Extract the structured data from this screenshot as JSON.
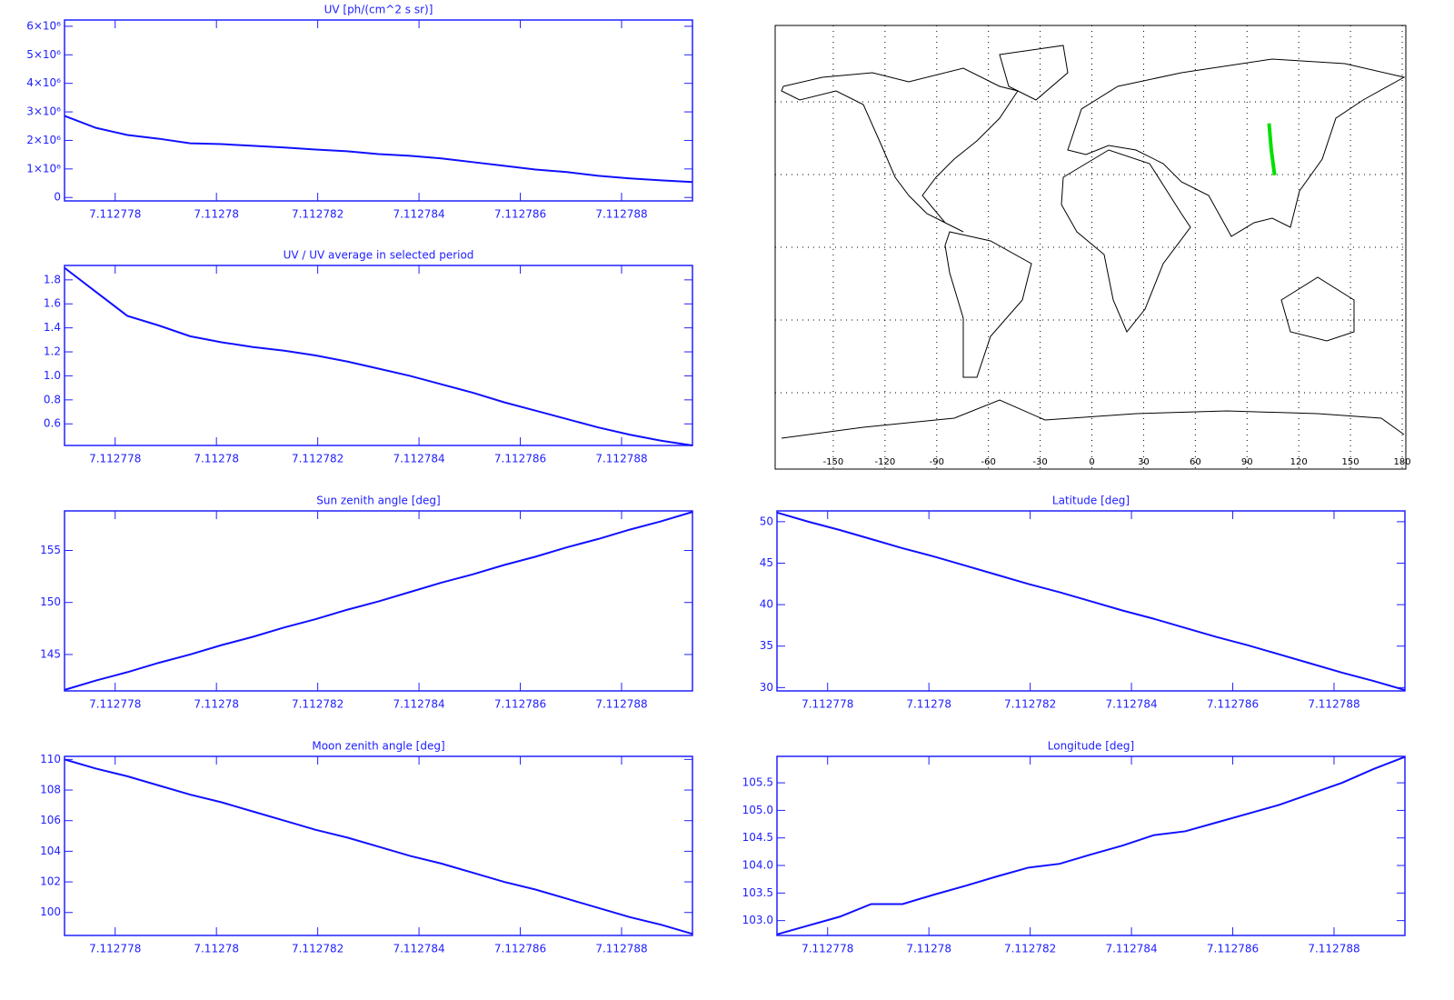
{
  "chart_data": [
    {
      "type": "line",
      "title": "UV [ph/(cm^2 s sr)]",
      "x": [
        7.112777,
        7.11277762,
        7.11277824,
        7.11277886,
        7.11277948,
        7.1127801,
        7.11278072,
        7.11278134,
        7.11278196,
        7.11278258,
        7.1127832,
        7.11278382,
        7.11278444,
        7.11278506,
        7.11278568,
        7.1127863,
        7.11278692,
        7.11278754,
        7.11278816,
        7.11278878,
        7.1127894
      ],
      "series": [
        {
          "color": "#1010ff",
          "values": [
            2860000,
            2440000,
            2190000,
            2060000,
            1900000,
            1870000,
            1810000,
            1750000,
            1680000,
            1620000,
            1520000,
            1460000,
            1370000,
            1240000,
            1110000,
            980000,
            890000,
            760000,
            670000,
            600000,
            540000
          ]
        }
      ],
      "xlim": [
        7.112777,
        7.1127894
      ],
      "xticks": [
        7.112778,
        7.11278,
        7.112782,
        7.112784,
        7.112786,
        7.112788
      ],
      "ylim": [
        -120000,
        6220000
      ],
      "yticks": [
        0,
        {
          "value": 1000000,
          "label": "1×10⁶"
        },
        {
          "value": 2000000,
          "label": "2×10⁶"
        },
        {
          "value": 3000000,
          "label": "3×10⁶"
        },
        {
          "value": 4000000,
          "label": "4×10⁶"
        },
        {
          "value": 5000000,
          "label": "5×10⁶"
        },
        {
          "value": 6000000,
          "label": "6×10⁶"
        }
      ]
    },
    {
      "type": "map",
      "xlim": [
        -183.7,
        182.1
      ],
      "ylim": [
        -91.5,
        91.5
      ],
      "xticks": [
        -150,
        -120,
        -90,
        -60,
        -30,
        0,
        30,
        60,
        90,
        120,
        150,
        180
      ],
      "yticks": [
        -60,
        -30,
        0,
        30,
        60
      ],
      "grid": true,
      "series": [
        {
          "color": "#00e000",
          "x": [
            102.75,
            104.03,
            105.97
          ],
          "values": [
            51.1,
            40.4,
            29.7
          ]
        }
      ]
    },
    {
      "type": "line",
      "title": "UV / UV average in selected period",
      "x": [
        7.112777,
        7.11277762,
        7.11277824,
        7.11277886,
        7.11277948,
        7.1127801,
        7.11278072,
        7.11278134,
        7.11278196,
        7.11278258,
        7.1127832,
        7.11278382,
        7.11278444,
        7.11278506,
        7.11278568,
        7.1127863,
        7.11278692,
        7.11278754,
        7.11278816,
        7.11278878,
        7.1127894
      ],
      "series": [
        {
          "color": "#1010ff",
          "values": [
            1.9,
            1.7,
            1.5,
            1.42,
            1.33,
            1.28,
            1.24,
            1.21,
            1.17,
            1.12,
            1.06,
            1.0,
            0.93,
            0.86,
            0.78,
            0.71,
            0.64,
            0.57,
            0.51,
            0.46,
            0.42
          ]
        }
      ],
      "xlim": [
        7.112777,
        7.1127894
      ],
      "xticks": [
        7.112778,
        7.11278,
        7.112782,
        7.112784,
        7.112786,
        7.112788
      ],
      "ylim": [
        0.42,
        1.92
      ],
      "yticks": [
        0.6,
        0.8,
        {
          "value": 1.0,
          "label": "1.0"
        },
        1.2,
        1.4,
        1.6,
        1.8
      ]
    },
    {
      "type": "line",
      "title": "Sun zenith angle [deg]",
      "x": [
        7.112777,
        7.11277762,
        7.11277824,
        7.11277886,
        7.11277948,
        7.1127801,
        7.11278072,
        7.11278134,
        7.11278196,
        7.11278258,
        7.1127832,
        7.11278382,
        7.11278444,
        7.11278506,
        7.11278568,
        7.1127863,
        7.11278692,
        7.11278754,
        7.11278816,
        7.11278878,
        7.1127894
      ],
      "series": [
        {
          "color": "#1010ff",
          "values": [
            141.6,
            142.5,
            143.3,
            144.2,
            145.0,
            145.9,
            146.7,
            147.6,
            148.4,
            149.3,
            150.1,
            151.0,
            151.9,
            152.7,
            153.6,
            154.4,
            155.3,
            156.1,
            157.0,
            157.8,
            158.7
          ]
        }
      ],
      "xlim": [
        7.112777,
        7.1127894
      ],
      "xticks": [
        7.112778,
        7.11278,
        7.112782,
        7.112784,
        7.112786,
        7.112788
      ],
      "ylim": [
        141.5,
        158.8
      ],
      "yticks": [
        145,
        150,
        155
      ]
    },
    {
      "type": "line",
      "title": "Latitude [deg]",
      "x": [
        7.112777,
        7.11277762,
        7.11277824,
        7.11277886,
        7.11277948,
        7.1127801,
        7.11278072,
        7.11278134,
        7.11278196,
        7.11278258,
        7.1127832,
        7.11278382,
        7.11278444,
        7.11278506,
        7.11278568,
        7.1127863,
        7.11278692,
        7.11278754,
        7.11278816,
        7.11278878,
        7.1127894
      ],
      "series": [
        {
          "color": "#1010ff",
          "values": [
            51.1,
            50.0,
            49.0,
            47.9,
            46.8,
            45.8,
            44.7,
            43.6,
            42.5,
            41.5,
            40.4,
            39.3,
            38.3,
            37.2,
            36.1,
            35.1,
            34.0,
            32.9,
            31.8,
            30.8,
            29.7
          ]
        }
      ],
      "xlim": [
        7.112777,
        7.1127894
      ],
      "xticks": [
        7.112778,
        7.11278,
        7.112782,
        7.112784,
        7.112786,
        7.112788
      ],
      "ylim": [
        29.6,
        51.3
      ],
      "yticks": [
        30,
        35,
        40,
        45,
        50
      ]
    },
    {
      "type": "line",
      "title": "Moon zenith angle [deg]",
      "x": [
        7.112777,
        7.11277762,
        7.11277824,
        7.11277886,
        7.11277948,
        7.1127801,
        7.11278072,
        7.11278134,
        7.11278196,
        7.11278258,
        7.1127832,
        7.11278382,
        7.11278444,
        7.11278506,
        7.11278568,
        7.1127863,
        7.11278692,
        7.11278754,
        7.11278816,
        7.11278878,
        7.1127894
      ],
      "series": [
        {
          "color": "#1010ff",
          "values": [
            110.0,
            109.4,
            108.9,
            108.3,
            107.7,
            107.2,
            106.6,
            106.0,
            105.4,
            104.9,
            104.3,
            103.7,
            103.2,
            102.6,
            102.0,
            101.5,
            100.9,
            100.3,
            99.7,
            99.2,
            98.6
          ]
        }
      ],
      "xlim": [
        7.112777,
        7.1127894
      ],
      "xticks": [
        7.112778,
        7.11278,
        7.112782,
        7.112784,
        7.112786,
        7.112788
      ],
      "ylim": [
        98.5,
        110.2
      ],
      "yticks": [
        100,
        102,
        104,
        106,
        108,
        110
      ]
    },
    {
      "type": "line",
      "title": "Longitude [deg]",
      "x": [
        7.112777,
        7.11277762,
        7.11277824,
        7.11277886,
        7.11277948,
        7.1127801,
        7.11278072,
        7.11278134,
        7.11278196,
        7.11278258,
        7.1127832,
        7.11278382,
        7.11278444,
        7.11278506,
        7.11278568,
        7.1127863,
        7.11278692,
        7.11278754,
        7.11278816,
        7.11278878,
        7.1127894
      ],
      "series": [
        {
          "color": "#1010ff",
          "values": [
            102.75,
            102.91,
            103.07,
            103.3,
            103.3,
            103.47,
            103.63,
            103.8,
            103.96,
            104.03,
            104.2,
            104.36,
            104.55,
            104.62,
            104.78,
            104.94,
            105.1,
            105.3,
            105.5,
            105.75,
            105.97
          ]
        }
      ],
      "xlim": [
        7.112777,
        7.1127894
      ],
      "xticks": [
        7.112778,
        7.11278,
        7.112782,
        7.112784,
        7.112786,
        7.112788
      ],
      "ylim": [
        102.73,
        105.98
      ],
      "yticks": [
        {
          "value": 103.0,
          "label": "103.0"
        },
        103.5,
        {
          "value": 104.0,
          "label": "104.0"
        },
        104.5,
        {
          "value": 105.0,
          "label": "105.0"
        },
        105.5
      ]
    }
  ]
}
